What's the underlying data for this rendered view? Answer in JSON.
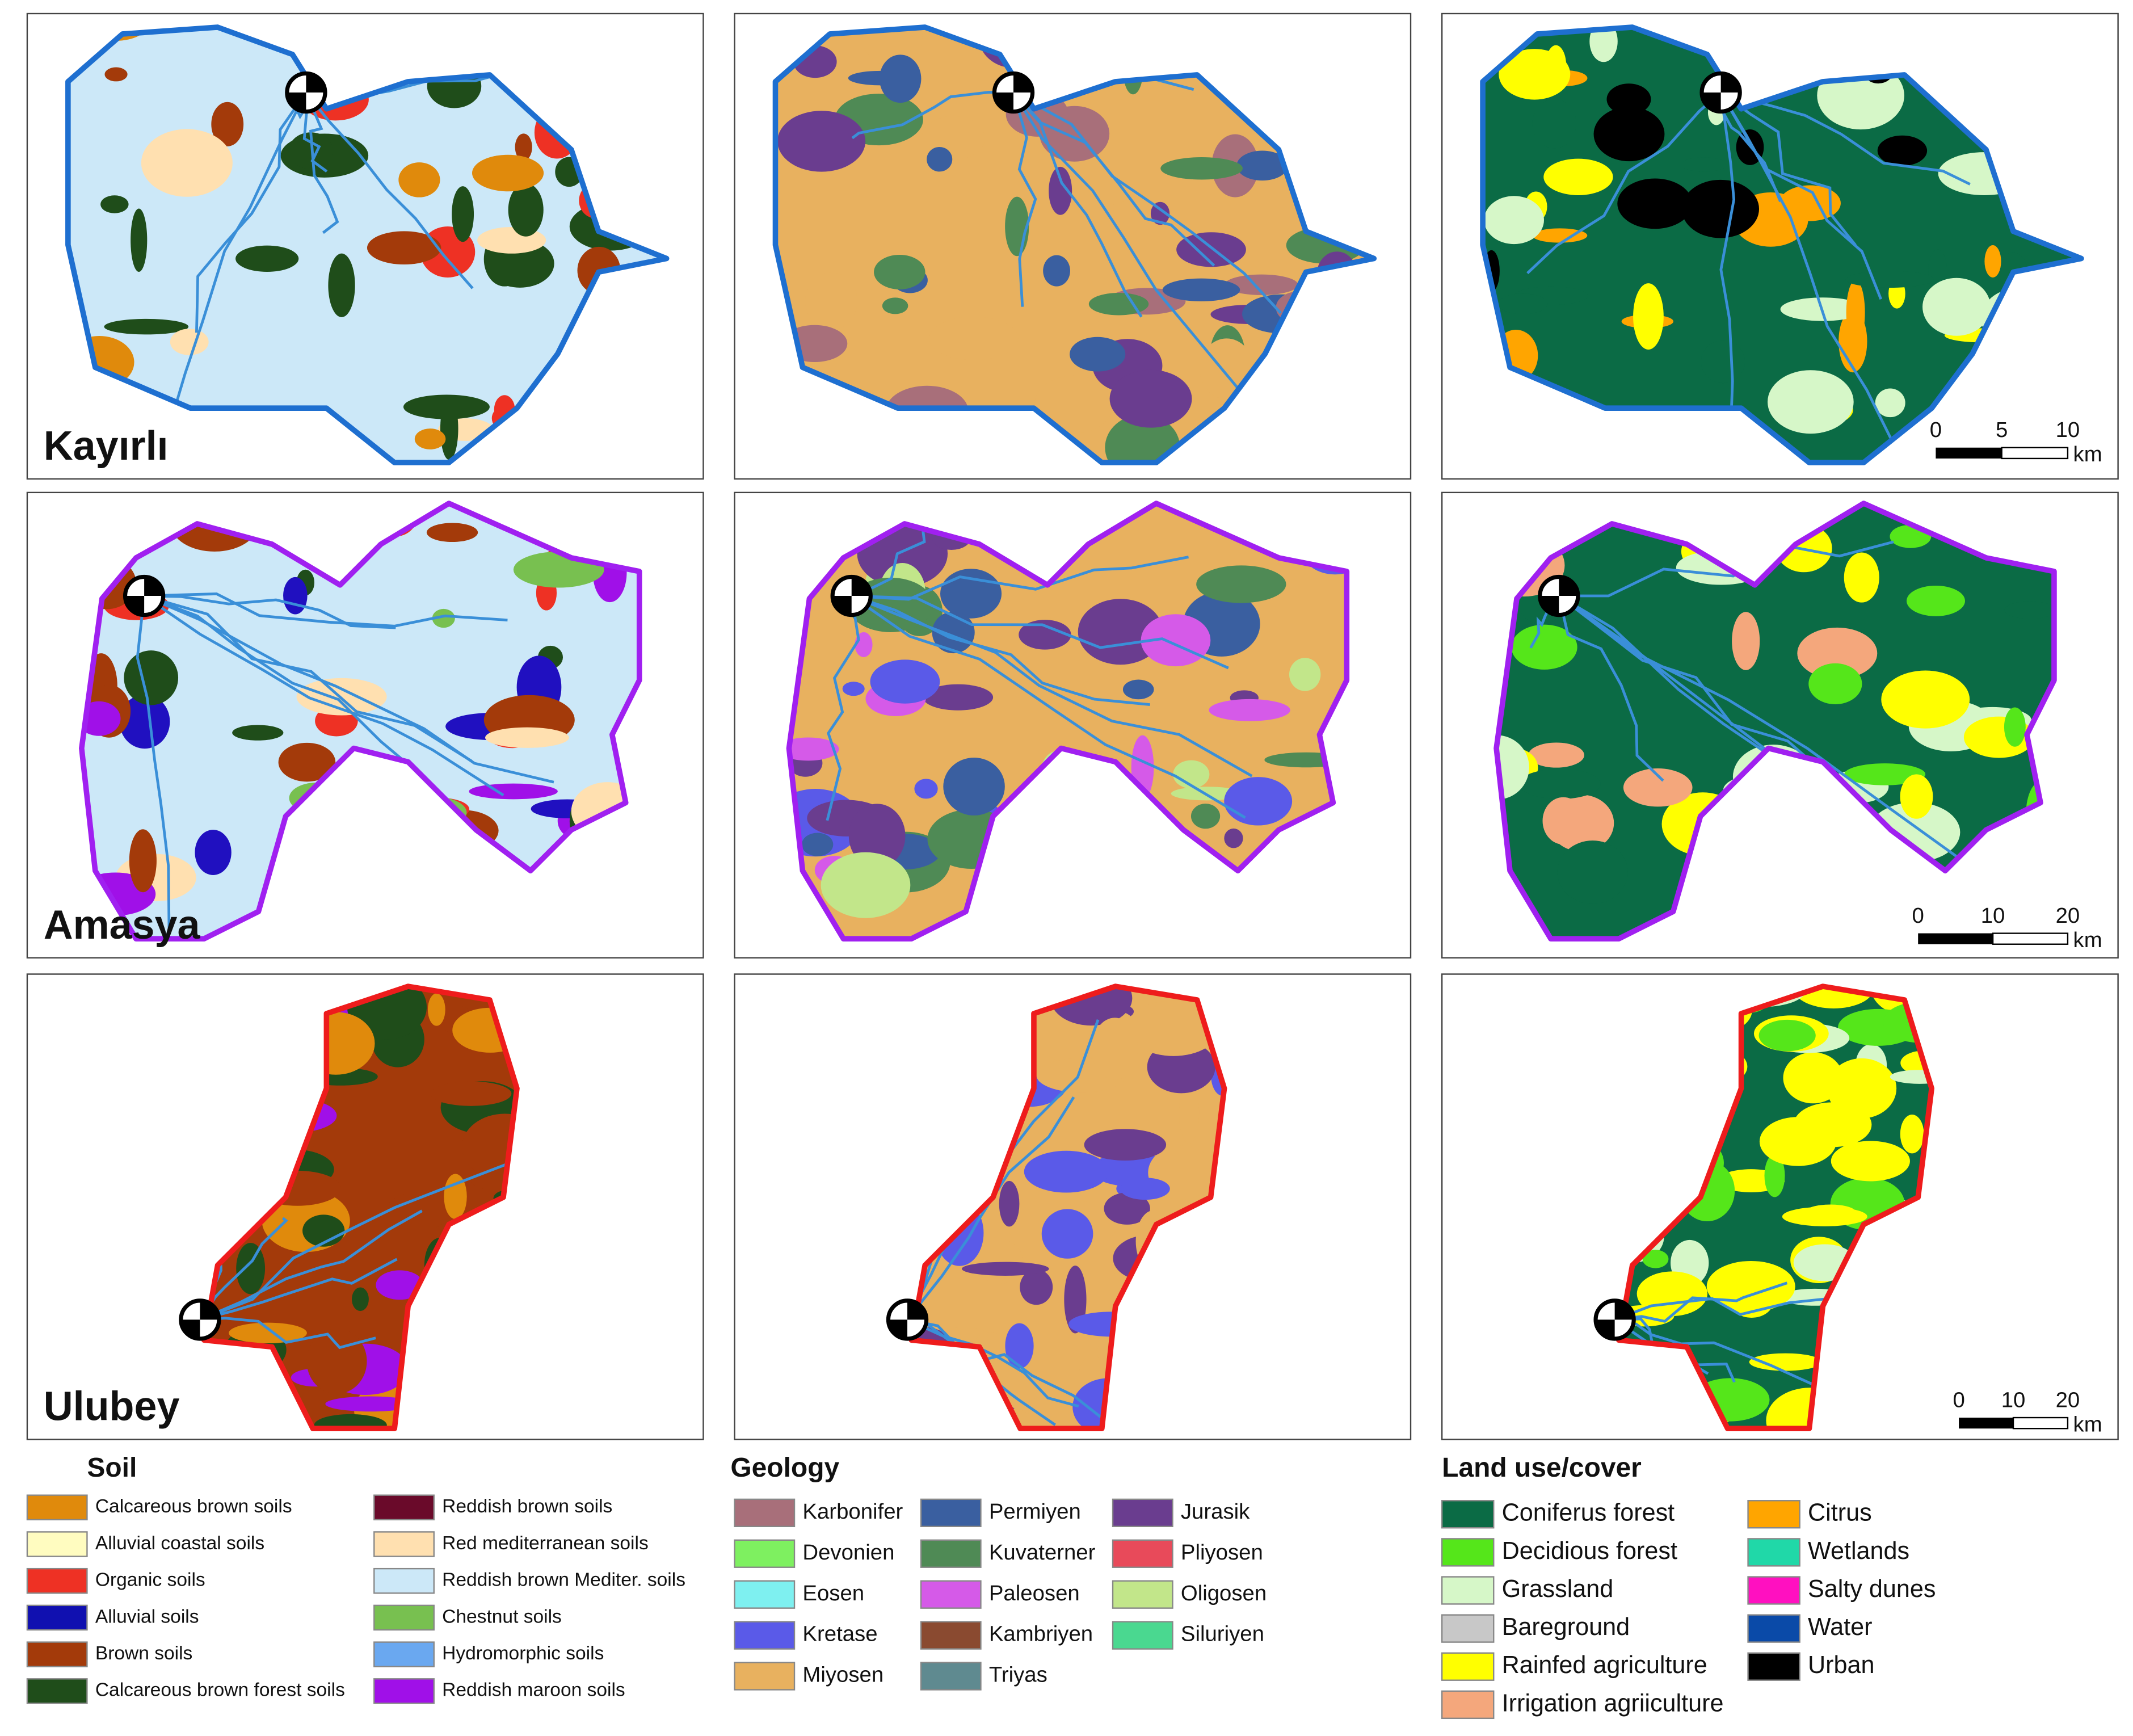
{
  "basins": [
    {
      "name": "Kayırlı",
      "scale": {
        "ticks": [
          0,
          5,
          10
        ],
        "unit": "km"
      }
    },
    {
      "name": "Amasya",
      "scale": {
        "ticks": [
          0,
          10,
          20
        ],
        "unit": "km"
      }
    },
    {
      "name": "Ulubey",
      "scale": {
        "ticks": [
          0,
          10,
          20
        ],
        "unit": "km"
      }
    }
  ],
  "legends": [
    {
      "title": "Soil",
      "items": [
        {
          "label": "Calcareous brown soils",
          "color": "#e08a0c"
        },
        {
          "label": "Alluvial coastal soils",
          "color": "#fffcc0"
        },
        {
          "label": "Organic soils",
          "color": "#ee3124"
        },
        {
          "label": "Alluvial soils",
          "color": "#1010b0"
        },
        {
          "label": "Brown soils",
          "color": "#a33a0a"
        },
        {
          "label": "Calcareous brown forest soils",
          "color": "#1f4d1a"
        },
        {
          "label": "Reddish brown soils",
          "color": "#6a0a2a"
        },
        {
          "label": "Red mediterranean soils",
          "color": "#ffe0b0"
        },
        {
          "label": "Reddish brown Mediter. soils",
          "color": "#cce8f8"
        },
        {
          "label": "Chestnut soils",
          "color": "#78c050"
        },
        {
          "label": "Hydromorphic soils",
          "color": "#6aa8f0"
        },
        {
          "label": "Reddish maroon soils",
          "color": "#a010e8"
        }
      ]
    },
    {
      "title": "Geology",
      "items": [
        {
          "label": "Karbonifer",
          "color": "#a86f7a"
        },
        {
          "label": "Devonien",
          "color": "#7ef060"
        },
        {
          "label": "Eosen",
          "color": "#7ef0f0"
        },
        {
          "label": "Kretase",
          "color": "#5a5ae8"
        },
        {
          "label": "Miyosen",
          "color": "#e8b15f"
        },
        {
          "label": "Permiyen",
          "color": "#3a5fa0"
        },
        {
          "label": "Kuvaterner",
          "color": "#4f8a55"
        },
        {
          "label": "Paleosen",
          "color": "#d55ae8"
        },
        {
          "label": "Kambriyen",
          "color": "#8a4a30"
        },
        {
          "label": "Triyas",
          "color": "#5f8a90"
        },
        {
          "label": "Jurasik",
          "color": "#6a3d8f"
        },
        {
          "label": "Pliyosen",
          "color": "#e84a5a"
        },
        {
          "label": "Oligosen",
          "color": "#c2e68a"
        },
        {
          "label": "Siluriyen",
          "color": "#4ad890"
        }
      ]
    },
    {
      "title": "Land use/cover",
      "items": [
        {
          "label": "Coniferus forest",
          "color": "#0b6b45"
        },
        {
          "label": "Decidious forest",
          "color": "#55e61a"
        },
        {
          "label": "Grassland",
          "color": "#d6f7c8"
        },
        {
          "label": "Bareground",
          "color": "#c8c8c8"
        },
        {
          "label": "Rainfed agriculture",
          "color": "#ffff00"
        },
        {
          "label": "Irrigation agriiculture",
          "color": "#f4a77c"
        },
        {
          "label": "Citrus",
          "color": "#ffa500"
        },
        {
          "label": "Wetlands",
          "color": "#20d8a8"
        },
        {
          "label": "Salty dunes",
          "color": "#ff10c0"
        },
        {
          "label": "Water",
          "color": "#0a4aa8"
        },
        {
          "label": "Urban",
          "color": "#000000"
        }
      ]
    }
  ]
}
